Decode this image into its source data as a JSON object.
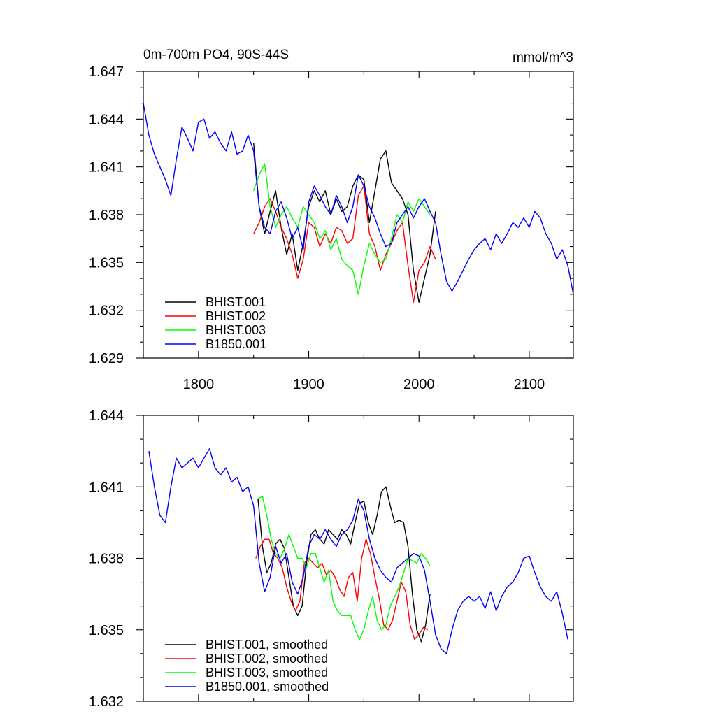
{
  "chart_data": [
    {
      "type": "line",
      "title": "0m-700m PO4, 90S-44S",
      "units": "mmol/m^3",
      "xlim": [
        1750,
        2140
      ],
      "ylim": [
        1.629,
        1.647
      ],
      "x_ticks": [
        1800,
        1900,
        2000,
        2100
      ],
      "x_tick_labels": [
        "1800",
        "1900",
        "2000",
        "2100"
      ],
      "y_ticks": [
        1.629,
        1.632,
        1.635,
        1.638,
        1.641,
        1.644,
        1.647
      ],
      "y_tick_labels": [
        "1.629",
        "1.632",
        "1.635",
        "1.638",
        "1.641",
        "1.644",
        "1.647"
      ],
      "grid": false,
      "legend_position": "bottom-left",
      "series": [
        {
          "name": "BHIST.001",
          "color": "#000000",
          "x": [
            1850,
            1855,
            1860,
            1865,
            1870,
            1875,
            1880,
            1885,
            1890,
            1895,
            1900,
            1905,
            1910,
            1915,
            1920,
            1925,
            1930,
            1935,
            1940,
            1945,
            1950,
            1955,
            1960,
            1965,
            1970,
            1975,
            1980,
            1985,
            1990,
            1995,
            2000,
            2005,
            2010,
            2015
          ],
          "values": [
            1.6425,
            1.6385,
            1.6368,
            1.6382,
            1.6395,
            1.6372,
            1.6355,
            1.6368,
            1.6345,
            1.6362,
            1.6385,
            1.6395,
            1.6388,
            1.6395,
            1.638,
            1.639,
            1.6382,
            1.6385,
            1.6398,
            1.6405,
            1.6402,
            1.6375,
            1.6395,
            1.6415,
            1.642,
            1.64,
            1.6395,
            1.639,
            1.638,
            1.6345,
            1.6325,
            1.634,
            1.6355,
            1.6382
          ]
        },
        {
          "name": "BHIST.002",
          "color": "#ff0000",
          "x": [
            1850,
            1855,
            1860,
            1865,
            1870,
            1875,
            1880,
            1885,
            1890,
            1895,
            1900,
            1905,
            1910,
            1915,
            1920,
            1925,
            1930,
            1935,
            1940,
            1945,
            1950,
            1955,
            1960,
            1965,
            1970,
            1975,
            1980,
            1985,
            1990,
            1995,
            2000,
            2005,
            2010,
            2015
          ],
          "values": [
            1.6368,
            1.6375,
            1.6385,
            1.639,
            1.6382,
            1.6372,
            1.6365,
            1.6355,
            1.634,
            1.6352,
            1.6375,
            1.6372,
            1.636,
            1.6368,
            1.6362,
            1.6372,
            1.637,
            1.6362,
            1.6365,
            1.6392,
            1.6398,
            1.6368,
            1.636,
            1.6345,
            1.6355,
            1.6362,
            1.637,
            1.6375,
            1.6348,
            1.6325,
            1.6345,
            1.635,
            1.636,
            1.6352
          ]
        },
        {
          "name": "BHIST.003",
          "color": "#00ff00",
          "x": [
            1850,
            1855,
            1860,
            1865,
            1870,
            1875,
            1880,
            1885,
            1890,
            1895,
            1900,
            1905,
            1910,
            1915,
            1920,
            1925,
            1930,
            1935,
            1940,
            1945,
            1950,
            1955,
            1960,
            1965,
            1970,
            1975,
            1980,
            1985,
            1990,
            1995,
            2000,
            2005,
            2010
          ],
          "values": [
            1.6395,
            1.6405,
            1.6412,
            1.6385,
            1.6372,
            1.638,
            1.6385,
            1.6378,
            1.6372,
            1.6385,
            1.638,
            1.6375,
            1.6365,
            1.637,
            1.6358,
            1.6365,
            1.6352,
            1.6348,
            1.6345,
            1.633,
            1.6348,
            1.6362,
            1.6355,
            1.635,
            1.6352,
            1.6365,
            1.638,
            1.6375,
            1.6388,
            1.6382,
            1.639,
            1.6385,
            1.638
          ]
        },
        {
          "name": "B1850.001",
          "color": "#0000ff",
          "x": [
            1750,
            1755,
            1760,
            1765,
            1770,
            1775,
            1780,
            1785,
            1790,
            1795,
            1800,
            1805,
            1810,
            1815,
            1820,
            1825,
            1830,
            1835,
            1840,
            1845,
            1850,
            1855,
            1860,
            1865,
            1870,
            1875,
            1880,
            1885,
            1890,
            1895,
            1900,
            1905,
            1910,
            1915,
            1920,
            1925,
            1930,
            1935,
            1940,
            1945,
            1950,
            1955,
            1960,
            1965,
            1970,
            1975,
            1980,
            1985,
            1990,
            1995,
            2000,
            2005,
            2010,
            2015,
            2020,
            2025,
            2030,
            2035,
            2040,
            2045,
            2050,
            2055,
            2060,
            2065,
            2070,
            2075,
            2080,
            2085,
            2090,
            2095,
            2100,
            2105,
            2110,
            2115,
            2120,
            2125,
            2130,
            2135,
            2140
          ],
          "values": [
            1.645,
            1.643,
            1.6418,
            1.641,
            1.6402,
            1.6392,
            1.6415,
            1.6435,
            1.6428,
            1.642,
            1.6438,
            1.644,
            1.6428,
            1.6432,
            1.6425,
            1.642,
            1.6432,
            1.6418,
            1.642,
            1.643,
            1.642,
            1.6385,
            1.6372,
            1.6368,
            1.6382,
            1.6388,
            1.6378,
            1.6365,
            1.6372,
            1.6358,
            1.6388,
            1.6398,
            1.6392,
            1.6385,
            1.638,
            1.6392,
            1.6385,
            1.6375,
            1.6385,
            1.6405,
            1.6398,
            1.6385,
            1.6378,
            1.6368,
            1.636,
            1.6362,
            1.6375,
            1.638,
            1.6385,
            1.6378,
            1.6385,
            1.639,
            1.6382,
            1.6375,
            1.6355,
            1.6338,
            1.6332,
            1.6338,
            1.6345,
            1.6352,
            1.6358,
            1.6362,
            1.6365,
            1.6358,
            1.6368,
            1.6362,
            1.6368,
            1.6375,
            1.6372,
            1.6378,
            1.6372,
            1.6382,
            1.6378,
            1.6368,
            1.6362,
            1.6352,
            1.6358,
            1.6348,
            1.633
          ]
        }
      ]
    },
    {
      "type": "line",
      "xlim": [
        1750,
        2140
      ],
      "ylim": [
        1.632,
        1.644
      ],
      "x_ticks": [
        1800,
        1900,
        2000,
        2100
      ],
      "y_ticks": [
        1.632,
        1.635,
        1.638,
        1.641,
        1.644
      ],
      "y_tick_labels": [
        "1.632",
        "1.635",
        "1.638",
        "1.641",
        "1.644"
      ],
      "grid": false,
      "legend_position": "bottom-left",
      "series": [
        {
          "name": "BHIST.001, smoothed",
          "color": "#000000",
          "x": [
            1854,
            1858,
            1862,
            1866,
            1870,
            1874,
            1878,
            1882,
            1886,
            1890,
            1894,
            1898,
            1902,
            1906,
            1910,
            1914,
            1918,
            1922,
            1926,
            1930,
            1934,
            1938,
            1942,
            1946,
            1950,
            1954,
            1958,
            1962,
            1966,
            1970,
            1974,
            1978,
            1982,
            1986,
            1990,
            1994,
            1998,
            2002,
            2006,
            2010
          ],
          "values": [
            1.6405,
            1.6385,
            1.6374,
            1.6378,
            1.6386,
            1.6388,
            1.6384,
            1.6372,
            1.636,
            1.6356,
            1.636,
            1.6378,
            1.639,
            1.6392,
            1.6388,
            1.6386,
            1.6392,
            1.639,
            1.6388,
            1.6392,
            1.639,
            1.6386,
            1.6395,
            1.6403,
            1.6404,
            1.6395,
            1.639,
            1.6398,
            1.6408,
            1.641,
            1.6402,
            1.6395,
            1.6396,
            1.6395,
            1.6385,
            1.6365,
            1.635,
            1.6345,
            1.6352,
            1.6365
          ]
        },
        {
          "name": "BHIST.002, smoothed",
          "color": "#ff0000",
          "x": [
            1852,
            1856,
            1860,
            1864,
            1868,
            1872,
            1876,
            1880,
            1884,
            1888,
            1892,
            1896,
            1900,
            1904,
            1908,
            1912,
            1916,
            1920,
            1924,
            1928,
            1932,
            1936,
            1940,
            1944,
            1948,
            1952,
            1956,
            1960,
            1964,
            1968,
            1972,
            1976,
            1980,
            1984,
            1988,
            1992,
            1996,
            2000,
            2004,
            2008
          ],
          "values": [
            1.638,
            1.6385,
            1.6388,
            1.6388,
            1.6382,
            1.638,
            1.6376,
            1.6368,
            1.6362,
            1.6358,
            1.6362,
            1.6378,
            1.638,
            1.6378,
            1.6376,
            1.6378,
            1.6373,
            1.6375,
            1.6372,
            1.6367,
            1.6364,
            1.6372,
            1.6374,
            1.6362,
            1.638,
            1.6388,
            1.6382,
            1.6372,
            1.6363,
            1.6352,
            1.635,
            1.6354,
            1.6362,
            1.637,
            1.6366,
            1.6352,
            1.6346,
            1.6348,
            1.6351,
            1.635
          ]
        },
        {
          "name": "BHIST.003, smoothed",
          "color": "#00ff00",
          "x": [
            1854,
            1858,
            1862,
            1866,
            1870,
            1874,
            1878,
            1882,
            1886,
            1890,
            1894,
            1898,
            1902,
            1906,
            1910,
            1914,
            1918,
            1922,
            1926,
            1930,
            1934,
            1938,
            1942,
            1946,
            1950,
            1954,
            1958,
            1962,
            1966,
            1970,
            1974,
            1978,
            1982,
            1986,
            1990,
            1994,
            1998,
            2002,
            2006,
            2010
          ],
          "values": [
            1.6405,
            1.6406,
            1.6398,
            1.6388,
            1.6382,
            1.638,
            1.6384,
            1.639,
            1.6385,
            1.638,
            1.638,
            1.6376,
            1.6382,
            1.6382,
            1.6376,
            1.637,
            1.6375,
            1.6362,
            1.6358,
            1.6356,
            1.6356,
            1.6356,
            1.635,
            1.6346,
            1.635,
            1.6358,
            1.6364,
            1.6354,
            1.635,
            1.6352,
            1.636,
            1.6364,
            1.6368,
            1.6374,
            1.638,
            1.6379,
            1.6378,
            1.6382,
            1.638,
            1.6377
          ]
        },
        {
          "name": "B1850.001, smoothed",
          "color": "#0000ff",
          "x": [
            1755,
            1760,
            1765,
            1770,
            1775,
            1780,
            1785,
            1790,
            1795,
            1800,
            1805,
            1810,
            1815,
            1820,
            1825,
            1830,
            1835,
            1840,
            1845,
            1850,
            1855,
            1860,
            1865,
            1870,
            1875,
            1880,
            1885,
            1890,
            1895,
            1900,
            1905,
            1910,
            1915,
            1920,
            1925,
            1930,
            1935,
            1940,
            1945,
            1950,
            1955,
            1960,
            1965,
            1970,
            1975,
            1980,
            1985,
            1990,
            1995,
            2000,
            2005,
            2010,
            2015,
            2020,
            2025,
            2030,
            2035,
            2040,
            2045,
            2050,
            2055,
            2060,
            2065,
            2070,
            2075,
            2080,
            2085,
            2090,
            2095,
            2100,
            2105,
            2110,
            2115,
            2120,
            2125,
            2130,
            2135
          ],
          "values": [
            1.6425,
            1.641,
            1.6398,
            1.6395,
            1.641,
            1.6422,
            1.6418,
            1.642,
            1.6422,
            1.6418,
            1.6422,
            1.6426,
            1.6418,
            1.6415,
            1.6418,
            1.6412,
            1.6414,
            1.6408,
            1.641,
            1.6402,
            1.6378,
            1.6366,
            1.6372,
            1.6385,
            1.6378,
            1.6382,
            1.637,
            1.6365,
            1.6372,
            1.6385,
            1.639,
            1.6388,
            1.6392,
            1.6388,
            1.6385,
            1.639,
            1.6392,
            1.6396,
            1.6405,
            1.64,
            1.6388,
            1.638,
            1.6375,
            1.6372,
            1.637,
            1.6376,
            1.6378,
            1.638,
            1.6382,
            1.6381,
            1.6375,
            1.6362,
            1.6348,
            1.6342,
            1.634,
            1.635,
            1.6358,
            1.6362,
            1.6364,
            1.6362,
            1.6364,
            1.6359,
            1.6366,
            1.6358,
            1.6364,
            1.6368,
            1.637,
            1.6374,
            1.638,
            1.6381,
            1.6374,
            1.6368,
            1.6364,
            1.6362,
            1.6366,
            1.6357,
            1.6346
          ]
        }
      ]
    }
  ]
}
